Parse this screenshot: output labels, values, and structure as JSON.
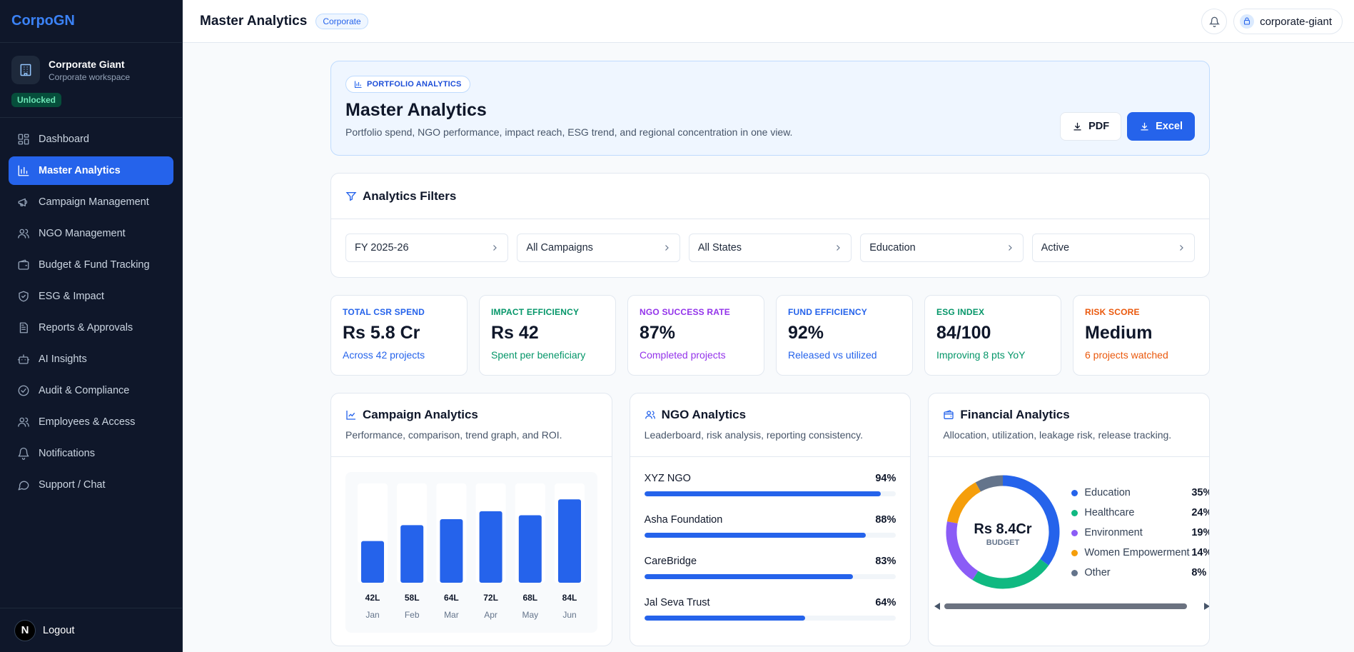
{
  "brand": "CorpoGN",
  "workspace": {
    "name": "Corporate Giant",
    "subtitle": "Corporate workspace",
    "status": "Unlocked"
  },
  "nav": [
    {
      "label": "Dashboard",
      "icon": "dashboard-icon"
    },
    {
      "label": "Master Analytics",
      "icon": "bar-chart-icon",
      "active": true
    },
    {
      "label": "Campaign Management",
      "icon": "megaphone-icon"
    },
    {
      "label": "NGO Management",
      "icon": "users-icon"
    },
    {
      "label": "Budget & Fund Tracking",
      "icon": "wallet-icon"
    },
    {
      "label": "ESG & Impact",
      "icon": "shield-icon"
    },
    {
      "label": "Reports & Approvals",
      "icon": "document-icon"
    },
    {
      "label": "AI Insights",
      "icon": "bot-icon"
    },
    {
      "label": "Audit & Compliance",
      "icon": "check-circle-icon"
    },
    {
      "label": "Employees & Access",
      "icon": "users-icon"
    },
    {
      "label": "Notifications",
      "icon": "bell-icon"
    },
    {
      "label": "Support / Chat",
      "icon": "chat-icon"
    }
  ],
  "logout": {
    "avatar": "N",
    "label": "Logout"
  },
  "topbar": {
    "title": "Master Analytics",
    "badge": "Corporate",
    "user": "corporate-giant"
  },
  "hero": {
    "tag": "PORTFOLIO ANALYTICS",
    "title": "Master Analytics",
    "description": "Portfolio spend, NGO performance, impact reach, ESG trend, and regional concentration in one view.",
    "pdf_label": "PDF",
    "excel_label": "Excel"
  },
  "filters": {
    "title": "Analytics Filters",
    "selects": [
      "FY 2025-26",
      "All Campaigns",
      "All States",
      "Education",
      "Active"
    ]
  },
  "kpis": [
    {
      "label": "TOTAL CSR SPEND",
      "value": "Rs 5.8 Cr",
      "sub": "Across 42 projects",
      "color": "#2563eb"
    },
    {
      "label": "IMPACT EFFICIENCY",
      "value": "Rs 42",
      "sub": "Spent per beneficiary",
      "color": "#059669"
    },
    {
      "label": "NGO SUCCESS RATE",
      "value": "87%",
      "sub": "Completed projects",
      "color": "#9333ea"
    },
    {
      "label": "FUND EFFICIENCY",
      "value": "92%",
      "sub": "Released vs utilized",
      "color": "#2563eb"
    },
    {
      "label": "ESG INDEX",
      "value": "84/100",
      "sub": "Improving 8 pts YoY",
      "color": "#059669"
    },
    {
      "label": "RISK SCORE",
      "value": "Medium",
      "sub": "6 projects watched",
      "color": "#ea580c"
    }
  ],
  "campaign": {
    "title": "Campaign Analytics",
    "subtitle": "Performance, comparison, trend graph, and ROI."
  },
  "chart_data": {
    "type": "bar",
    "categories": [
      "Jan",
      "Feb",
      "Mar",
      "Apr",
      "May",
      "Jun"
    ],
    "values": [
      42,
      58,
      64,
      72,
      68,
      84
    ],
    "value_labels": [
      "42L",
      "58L",
      "64L",
      "72L",
      "68L",
      "84L"
    ],
    "ylim": [
      0,
      100
    ],
    "color": "#2563eb"
  },
  "ngo": {
    "title": "NGO Analytics",
    "subtitle": "Leaderboard, risk analysis, reporting consistency.",
    "items": [
      {
        "name": "XYZ NGO",
        "pct_label": "94%",
        "value": 94
      },
      {
        "name": "Asha Foundation",
        "pct_label": "88%",
        "value": 88
      },
      {
        "name": "CareBridge",
        "pct_label": "83%",
        "value": 83
      },
      {
        "name": "Jal Seva Trust",
        "pct_label": "64%",
        "value": 64
      }
    ]
  },
  "financial": {
    "title": "Financial Analytics",
    "subtitle": "Allocation, utilization, leakage risk, release tracking.",
    "center_value": "Rs 8.4Cr",
    "center_label": "BUDGET",
    "segments": [
      {
        "name": "Education",
        "pct_label": "35%",
        "value": 35,
        "color": "#2563eb"
      },
      {
        "name": "Healthcare",
        "pct_label": "24%",
        "value": 24,
        "color": "#10b981"
      },
      {
        "name": "Environment",
        "pct_label": "19%",
        "value": 19,
        "color": "#8b5cf6"
      },
      {
        "name": "Women Empowerment",
        "pct_label": "14%",
        "value": 14,
        "color": "#f59e0b"
      },
      {
        "name": "Other",
        "pct_label": "8%",
        "value": 8,
        "color": "#64748b"
      }
    ]
  }
}
